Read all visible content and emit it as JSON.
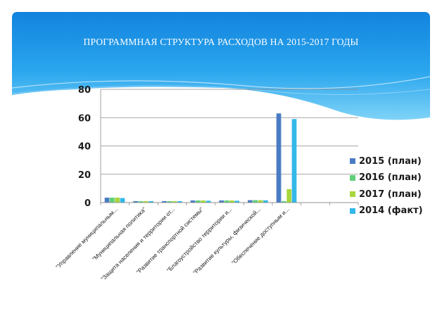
{
  "slide": {
    "title": "ПРОГРАММНАЯ СТРУКТУРА РАСХОДОВ НА 2015-2017 ГОДЫ"
  },
  "chart_data": {
    "type": "bar",
    "title": "",
    "xlabel": "",
    "ylabel": "",
    "ylim": [
      0,
      80
    ],
    "yticks": [
      "0",
      "20",
      "40",
      "60",
      "80"
    ],
    "grid": true,
    "legend_position": "right",
    "categories": [
      "\"Управление муниципальным...",
      "\"Муниципальная политика\"",
      "\"Защита населения и территории от...",
      "\"Развитие транспортной системы\"",
      "\"Благоустройство территории и...",
      "\"Развитие культуры, физической...",
      "\"Обеспечение доступным и...",
      "",
      ""
    ],
    "series": [
      {
        "name": "2015 (план)",
        "color": "#4a7cc4",
        "values": [
          3.5,
          1.0,
          1.0,
          1.5,
          1.5,
          1.7,
          63,
          null,
          null
        ]
      },
      {
        "name": "2016 (план)",
        "color": "#5fd07a",
        "values": [
          3.5,
          1.0,
          1.0,
          1.5,
          1.5,
          1.7,
          1.0,
          null,
          null
        ]
      },
      {
        "name": "2017 (план)",
        "color": "#a8d63c",
        "values": [
          3.5,
          1.0,
          1.0,
          1.5,
          1.5,
          1.7,
          9.5,
          null,
          null
        ]
      },
      {
        "name": "2014 (факт)",
        "color": "#33b8ea",
        "values": [
          3.2,
          1.0,
          1.0,
          1.3,
          1.3,
          1.6,
          59,
          null,
          null
        ]
      }
    ]
  }
}
